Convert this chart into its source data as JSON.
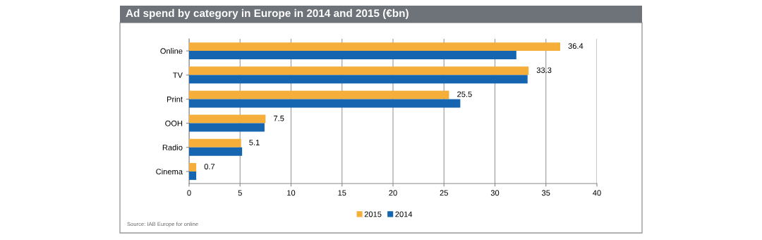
{
  "chart_data": {
    "type": "bar",
    "orientation": "horizontal",
    "title": "Ad spend by category in Europe in 2014 and 2015 (€bn)",
    "categories": [
      "Online",
      "TV",
      "Print",
      "OOH",
      "Radio",
      "Cinema"
    ],
    "series": [
      {
        "name": "2015",
        "color": "#f5ae3a",
        "values": [
          36.4,
          33.3,
          25.5,
          7.5,
          5.1,
          0.7
        ],
        "value_labels": [
          "36.4",
          "33.3",
          "25.5",
          "7.5",
          "5.1",
          "0.7"
        ]
      },
      {
        "name": "2014",
        "color": "#1565b0",
        "values": [
          32.1,
          33.2,
          26.6,
          7.4,
          5.2,
          0.7
        ]
      }
    ],
    "xlim": [
      0,
      40
    ],
    "xticks": [
      0,
      5,
      10,
      15,
      20,
      25,
      30,
      35,
      40
    ],
    "grid": "x",
    "legend": "bottom",
    "annotations": [
      "Source: IAB Europe for online"
    ]
  }
}
